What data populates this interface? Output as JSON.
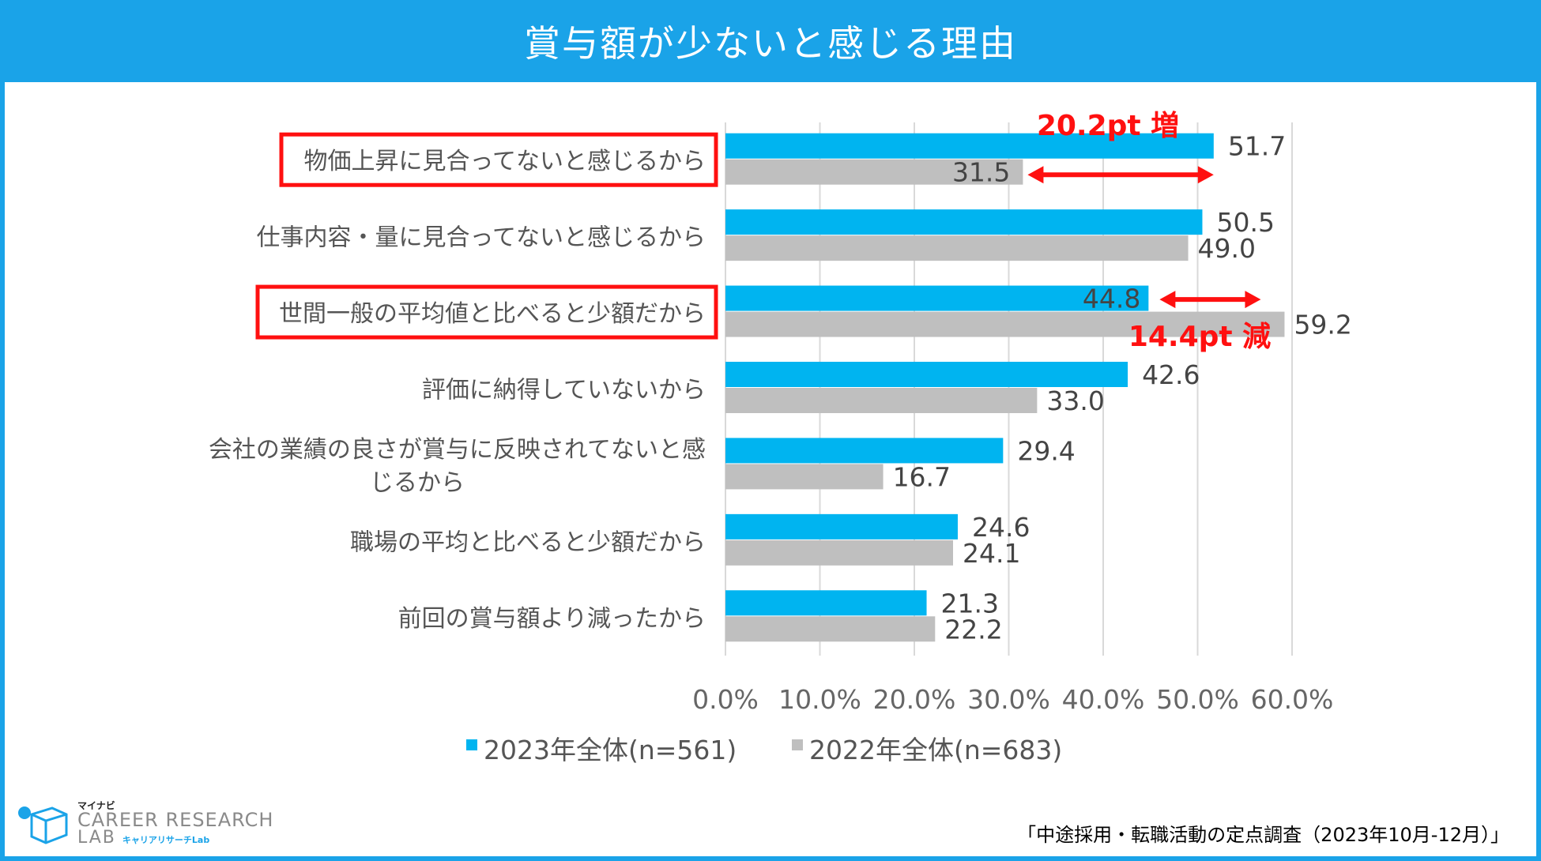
{
  "page": {
    "title": "賞与額が少ないと感じる理由",
    "source": "「中途採用・転職活動の定点調査（2023年10月-12月）」",
    "logo": {
      "top": "マイナビ",
      "main": "CAREER RESEARCH",
      "sub": "LAB",
      "kana": "キャリアリサーチLab"
    }
  },
  "colors": {
    "series2023": "#00b4f0",
    "series2022": "#bfbfbf",
    "accent": "#ff1010",
    "title_bar": "#1aa3e8"
  },
  "chart_data": {
    "type": "bar",
    "orientation": "horizontal",
    "title": "賞与額が少ないと感じる理由",
    "categories": [
      [
        "物価上昇に見合ってないと感じるから"
      ],
      [
        "仕事内容・量に見合ってないと感じるから"
      ],
      [
        "世間一般の平均値と比べると少額だから"
      ],
      [
        "評価に納得していないから"
      ],
      [
        "会社の業績の良さが賞与に反映されてないと感",
        "じるから"
      ],
      [
        "職場の平均と比べると少額だから"
      ],
      [
        "前回の賞与額より減ったから"
      ]
    ],
    "highlighted": [
      0,
      2
    ],
    "series": [
      {
        "name": "2023年全体(n=561)",
        "values": [
          51.7,
          50.5,
          44.8,
          42.6,
          29.4,
          24.6,
          21.3
        ]
      },
      {
        "name": "2022年全体(n=683)",
        "values": [
          31.5,
          49.0,
          59.2,
          33.0,
          16.7,
          24.1,
          22.2
        ]
      }
    ],
    "value_labels": [
      [
        "51.7",
        "50.5",
        "44.8",
        "42.6",
        "29.4",
        "24.6",
        "21.3"
      ],
      [
        "31.5",
        "49.0",
        "59.2",
        "33.0",
        "16.7",
        "24.1",
        "22.2"
      ]
    ],
    "xlim": [
      0,
      60
    ],
    "x_ticks": [
      0,
      10,
      20,
      30,
      40,
      50,
      60
    ],
    "x_tick_labels": [
      "0.0%",
      "10.0%",
      "20.0%",
      "30.0%",
      "40.0%",
      "50.0%",
      "60.0%"
    ],
    "grid": true,
    "legend_position": "bottom",
    "annotations": [
      {
        "category": 0,
        "text": "20.2pt 増",
        "from": 31.5,
        "to": 51.7
      },
      {
        "category": 2,
        "text": "14.4pt 減",
        "from": 44.8,
        "to": 59.2
      }
    ]
  }
}
